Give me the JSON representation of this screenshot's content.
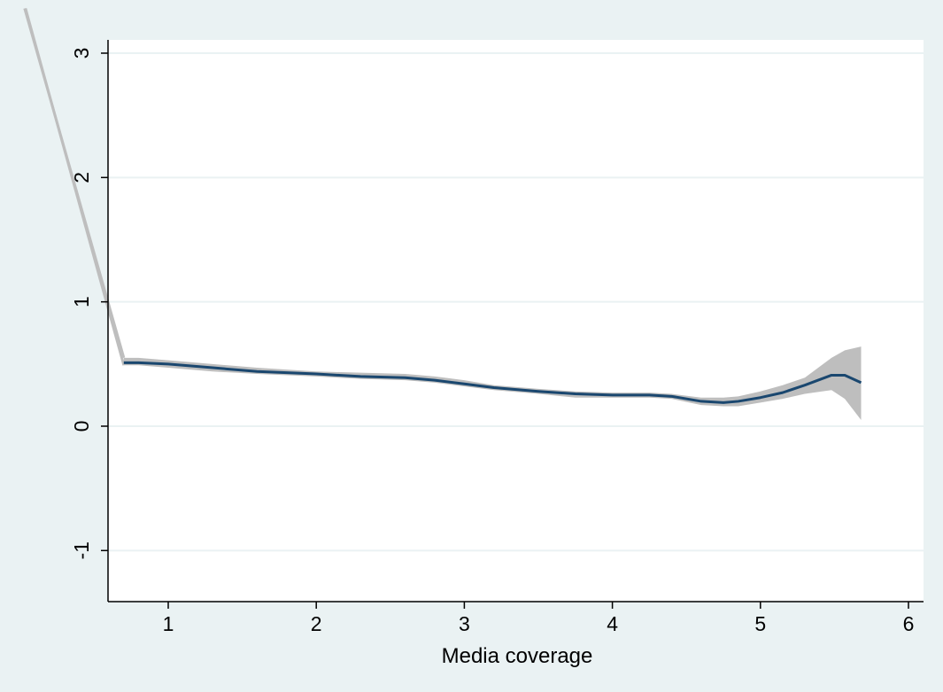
{
  "chart_data": {
    "type": "line",
    "title": "",
    "xlabel": "Media coverage",
    "ylabel": "",
    "xlim": [
      0.6,
      6.1
    ],
    "ylim": [
      -1.4,
      3.1
    ],
    "xticks": [
      1,
      2,
      3,
      4,
      5,
      6
    ],
    "yticks": [
      -1,
      0,
      1,
      2,
      3
    ],
    "xtick_labels": [
      "1",
      "2",
      "3",
      "4",
      "5",
      "6"
    ],
    "ytick_labels": [
      "-1",
      "0",
      "1",
      "2",
      "3"
    ],
    "grid": "horizontal",
    "legend": "none",
    "colors": {
      "background": "#eaf2f3",
      "plot_area": "#ffffff",
      "line": "#1a476f",
      "band": "#bebebe",
      "grid": "#eaf2f3"
    },
    "series": [
      {
        "x": [
          0.7,
          0.8,
          1.0,
          1.3,
          1.6,
          2.0,
          2.3,
          2.6,
          2.8,
          3.0,
          3.2,
          3.5,
          3.75,
          4.0,
          4.25,
          4.4,
          4.6,
          4.75,
          4.85,
          5.0,
          5.15,
          5.3,
          5.48,
          5.57,
          5.68
        ],
        "y": [
          0.51,
          0.51,
          0.5,
          0.47,
          0.44,
          0.42,
          0.4,
          0.39,
          0.37,
          0.34,
          0.31,
          0.28,
          0.26,
          0.25,
          0.25,
          0.24,
          0.2,
          0.19,
          0.2,
          0.23,
          0.27,
          0.33,
          0.41,
          0.41,
          0.35
        ],
        "ci_upper": [
          0.55,
          0.55,
          0.53,
          0.5,
          0.47,
          0.44,
          0.43,
          0.42,
          0.4,
          0.37,
          0.33,
          0.3,
          0.28,
          0.27,
          0.27,
          0.26,
          0.23,
          0.23,
          0.24,
          0.28,
          0.33,
          0.39,
          0.55,
          0.61,
          0.64
        ],
        "ci_lower": [
          0.49,
          0.49,
          0.47,
          0.44,
          0.42,
          0.4,
          0.38,
          0.37,
          0.35,
          0.32,
          0.29,
          0.26,
          0.23,
          0.23,
          0.23,
          0.22,
          0.17,
          0.16,
          0.16,
          0.19,
          0.22,
          0.26,
          0.29,
          0.22,
          0.05
        ]
      }
    ],
    "ci_leftward_extension": {
      "x": [
        0.03,
        0.7
      ],
      "y": [
        3.36,
        0.51
      ]
    }
  }
}
